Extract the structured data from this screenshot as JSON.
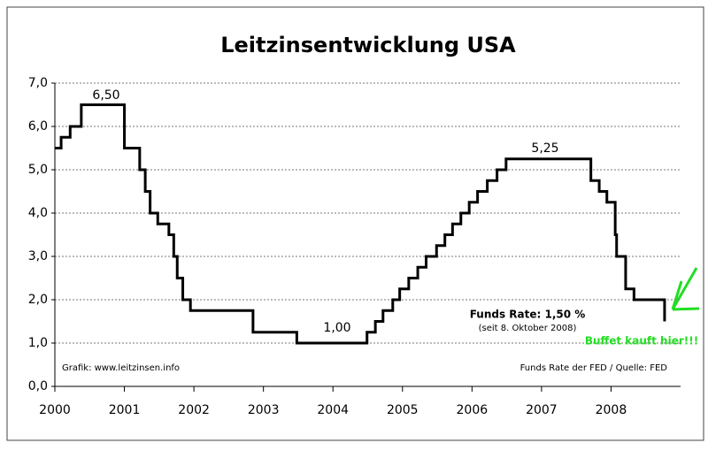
{
  "chart_data": {
    "type": "step-line",
    "title": "Leitzinsentwicklung USA",
    "x": [
      2000.0,
      2000.09,
      2000.22,
      2000.38,
      2001.0,
      2001.08,
      2001.22,
      2001.3,
      2001.37,
      2001.48,
      2001.64,
      2001.71,
      2001.76,
      2001.84,
      2001.95,
      2002.85,
      2003.48,
      2004.49,
      2004.61,
      2004.72,
      2004.86,
      2004.96,
      2005.09,
      2005.22,
      2005.34,
      2005.49,
      2005.61,
      2005.72,
      2005.84,
      2005.96,
      2006.08,
      2006.22,
      2006.36,
      2006.49,
      2007.71,
      2007.83,
      2007.94,
      2008.06,
      2008.08,
      2008.21,
      2008.33,
      2008.77
    ],
    "values": [
      5.5,
      5.75,
      6.0,
      6.5,
      5.5,
      5.5,
      5.0,
      4.5,
      4.0,
      3.75,
      3.5,
      3.0,
      2.5,
      2.0,
      1.75,
      1.25,
      1.0,
      1.25,
      1.5,
      1.75,
      2.0,
      2.25,
      2.5,
      2.75,
      3.0,
      3.25,
      3.5,
      3.75,
      4.0,
      4.25,
      4.5,
      4.75,
      5.0,
      5.25,
      4.75,
      4.5,
      4.25,
      3.5,
      3.0,
      2.25,
      2.0,
      1.5
    ],
    "color": "#000000",
    "xlim": [
      2000,
      2009
    ],
    "xticks": [
      2000,
      2001,
      2002,
      2003,
      2004,
      2005,
      2006,
      2007,
      2008
    ],
    "ylim": [
      0,
      7
    ],
    "yticks": [
      {
        "value": 0,
        "label": "0,0"
      },
      {
        "value": 1,
        "label": "1,0"
      },
      {
        "value": 2,
        "label": "2,0"
      },
      {
        "value": 3,
        "label": "3,0"
      },
      {
        "value": 4,
        "label": "4,0"
      },
      {
        "value": 5,
        "label": "5,0"
      },
      {
        "value": 6,
        "label": "6,0"
      },
      {
        "value": 7,
        "label": "7,0"
      }
    ],
    "grid": true,
    "annotations": [
      "6,50",
      "5,25",
      "1,00",
      "Funds Rate: 1,50 %",
      "(seit 8. Oktober 2008)",
      "Grafik: www.leitzinsen.info",
      "Funds Rate der FED / Quelle: FED",
      "Buffet kauft hier!!!"
    ]
  }
}
